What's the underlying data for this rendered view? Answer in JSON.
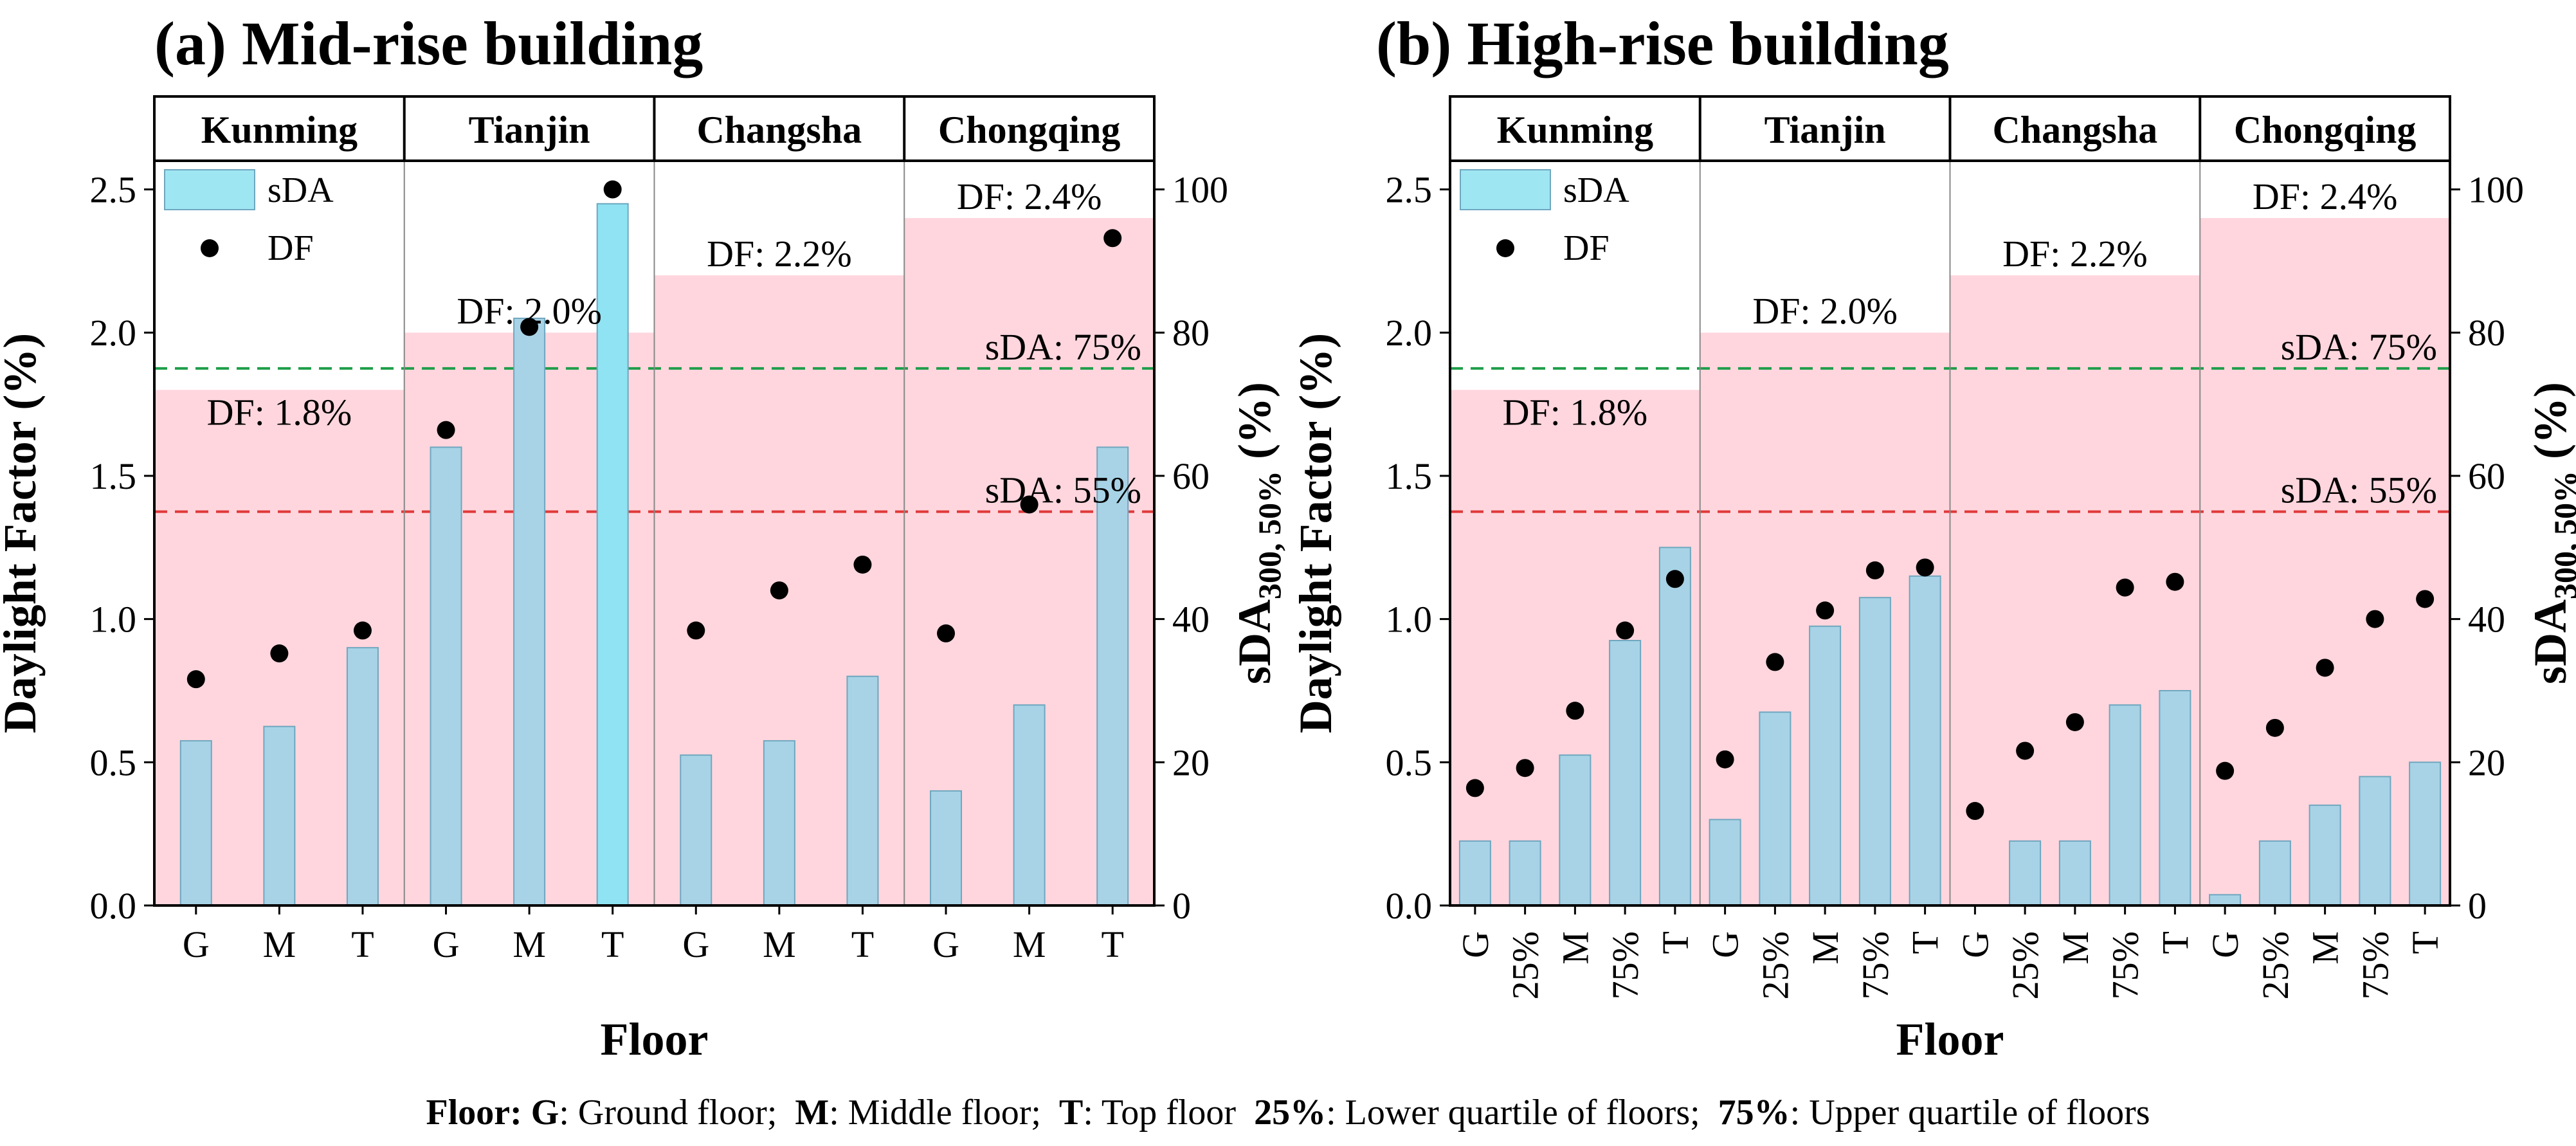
{
  "chart_data": [
    {
      "type": "bar+scatter",
      "title": "(a) Mid-rise building",
      "xlabel": "Floor",
      "ylabel_left": "Daylight Factor (%)",
      "ylabel_right_main": "sDA",
      "ylabel_right_sub": "300, 50%",
      "ylabel_right_unit": " (%)",
      "ylim_left": [
        0,
        2.6
      ],
      "ylim_right": [
        0,
        104
      ],
      "yticks_left": [
        "0.0",
        "0.5",
        "1.0",
        "1.5",
        "2.0",
        "2.5"
      ],
      "yticks_right": [
        "0",
        "20",
        "40",
        "60",
        "80",
        "100"
      ],
      "legend": [
        "sDA",
        "DF"
      ],
      "thresholds": [
        {
          "label": "sDA: 75%",
          "value": 75,
          "color": "#1e9e4a"
        },
        {
          "label": "sDA: 55%",
          "value": 55,
          "color": "#e03a3a"
        }
      ],
      "groups": [
        {
          "name": "Kunming",
          "df_threshold": 1.8,
          "df_label": "DF: 1.8%",
          "floors": [
            "G",
            "M",
            "T"
          ],
          "sda": [
            23,
            25,
            36
          ],
          "df": [
            0.79,
            0.88,
            0.96
          ]
        },
        {
          "name": "Tianjin",
          "df_threshold": 2.0,
          "df_label": "DF: 2.0%",
          "floors": [
            "G",
            "M",
            "T"
          ],
          "sda": [
            64,
            82,
            98
          ],
          "df": [
            1.66,
            2.02,
            2.5
          ]
        },
        {
          "name": "Changsha",
          "df_threshold": 2.2,
          "df_label": "DF: 2.2%",
          "floors": [
            "G",
            "M",
            "T"
          ],
          "sda": [
            21,
            23,
            32
          ],
          "df": [
            0.96,
            1.1,
            1.19
          ]
        },
        {
          "name": "Chongqing",
          "df_threshold": 2.4,
          "df_label": "DF: 2.4%",
          "floors": [
            "G",
            "M",
            "T"
          ],
          "sda": [
            16,
            28,
            64
          ],
          "df": [
            0.95,
            1.4,
            2.33
          ]
        }
      ]
    },
    {
      "type": "bar+scatter",
      "title": "(b) High-rise building",
      "xlabel": "Floor",
      "ylabel_left": "Daylight Factor (%)",
      "ylabel_right_main": "sDA",
      "ylabel_right_sub": "300, 50%",
      "ylabel_right_unit": " (%)",
      "ylim_left": [
        0,
        2.6
      ],
      "ylim_right": [
        0,
        104
      ],
      "yticks_left": [
        "0.0",
        "0.5",
        "1.0",
        "1.5",
        "2.0",
        "2.5"
      ],
      "yticks_right": [
        "0",
        "20",
        "40",
        "60",
        "80",
        "100"
      ],
      "legend": [
        "sDA",
        "DF"
      ],
      "thresholds": [
        {
          "label": "sDA: 75%",
          "value": 75,
          "color": "#1e9e4a"
        },
        {
          "label": "sDA: 55%",
          "value": 55,
          "color": "#e03a3a"
        }
      ],
      "groups": [
        {
          "name": "Kunming",
          "df_threshold": 1.8,
          "df_label": "DF: 1.8%",
          "floors": [
            "G",
            "25%",
            "M",
            "75%",
            "T"
          ],
          "sda": [
            9,
            9,
            21,
            37,
            50
          ],
          "df": [
            0.41,
            0.48,
            0.68,
            0.96,
            1.14
          ]
        },
        {
          "name": "Tianjin",
          "df_threshold": 2.0,
          "df_label": "DF: 2.0%",
          "floors": [
            "G",
            "25%",
            "M",
            "75%",
            "T"
          ],
          "sda": [
            12,
            27,
            39,
            43,
            46
          ],
          "df": [
            0.51,
            0.85,
            1.03,
            1.17,
            1.18
          ]
        },
        {
          "name": "Changsha",
          "df_threshold": 2.2,
          "df_label": "DF: 2.2%",
          "floors": [
            "G",
            "25%",
            "M",
            "75%",
            "T"
          ],
          "sda": [
            0,
            9,
            9,
            28,
            30
          ],
          "df": [
            0.33,
            0.54,
            0.64,
            1.11,
            1.13
          ]
        },
        {
          "name": "Chongqing",
          "df_threshold": 2.4,
          "df_label": "DF: 2.4%",
          "floors": [
            "G",
            "25%",
            "M",
            "75%",
            "T"
          ],
          "sda": [
            1.5,
            9,
            14,
            18,
            20
          ],
          "df": [
            0.47,
            0.62,
            0.83,
            1.0,
            1.07
          ]
        }
      ]
    }
  ],
  "caption": {
    "floor_label": "Floor:",
    "g_key": "G",
    "g_desc": ": Ground floor;",
    "m_key": "M",
    "m_desc": ": Middle floor;",
    "t_key": "T",
    "t_desc": ": Top floor",
    "q1_key": "25%",
    "q1_desc": ": Lower quartile of floors;",
    "q3_key": "75%",
    "q3_desc": ": Upper quartile of floors"
  },
  "colors": {
    "bar_fill": "#a8d3e6",
    "bar_stroke": "#6fa7bf",
    "highlight_bar": "#8fe3f2",
    "df_zone": "#ffd6de",
    "legend_swatch": "#9fe6f3",
    "dot": "#000000"
  }
}
